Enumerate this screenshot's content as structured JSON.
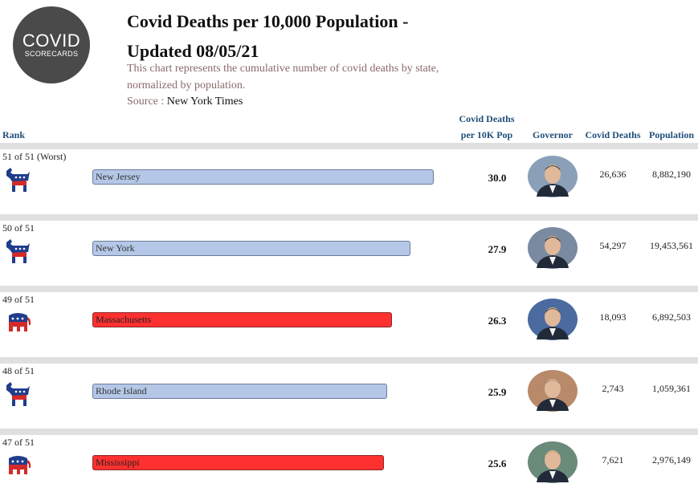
{
  "logo": {
    "line1": "COVID",
    "line2": "SCORECARDS"
  },
  "title": "Covid Deaths per 10,000 Population - Updated 08/05/21",
  "subtitle": "This chart represents the cumulative number of covid deaths by state, normalized by population.",
  "source": {
    "label": "Source : ",
    "value": "New York Times"
  },
  "headers": {
    "rank": "Rank",
    "deaths_per_10k": "Covid Deaths per 10K Pop",
    "governor": "Governor",
    "covid_deaths": "Covid Deaths",
    "population": "Population"
  },
  "colors": {
    "democrat_bar": "#b4c7e7",
    "republican_bar": "#ff3030",
    "header_text": "#1f4e79"
  },
  "chart_data": {
    "type": "bar",
    "orientation": "horizontal",
    "title": "Covid Deaths per 10,000 Population - Updated 08/05/21",
    "xlim": [
      0,
      31.6
    ],
    "rows": [
      {
        "rank": "51 of 51 (Worst)",
        "state": "New Jersey",
        "party": "democrat",
        "party_icon": "donkey-icon",
        "value": 30.0,
        "value_label": "30.0",
        "deaths": "26,636",
        "population": "8,882,190"
      },
      {
        "rank": "50 of 51",
        "state": "New York",
        "party": "democrat",
        "party_icon": "donkey-icon",
        "value": 27.9,
        "value_label": "27.9",
        "deaths": "54,297",
        "population": "19,453,561"
      },
      {
        "rank": "49 of 51",
        "state": "Massachusetts",
        "party": "republican",
        "party_icon": "elephant-icon",
        "value": 26.3,
        "value_label": "26.3",
        "deaths": "18,093",
        "population": "6,892,503"
      },
      {
        "rank": "48 of 51",
        "state": "Rhode Island",
        "party": "democrat",
        "party_icon": "donkey-icon",
        "value": 25.9,
        "value_label": "25.9",
        "deaths": "2,743",
        "population": "1,059,361"
      },
      {
        "rank": "47 of 51",
        "state": "Mississippi",
        "party": "republican",
        "party_icon": "elephant-icon",
        "value": 25.6,
        "value_label": "25.6",
        "deaths": "7,621",
        "population": "2,976,149"
      }
    ]
  }
}
